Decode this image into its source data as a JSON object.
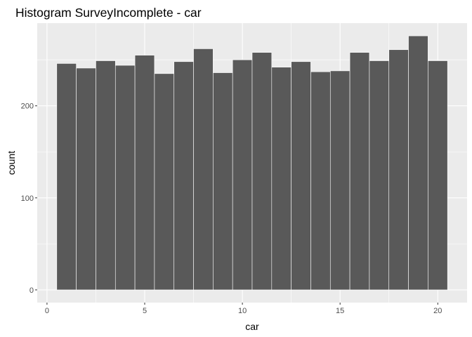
{
  "chart_data": {
    "type": "bar",
    "title": "Histogram SurveyIncomplete - car",
    "xlabel": "car",
    "ylabel": "count",
    "bins": [
      {
        "x": 1,
        "count": 246
      },
      {
        "x": 2,
        "count": 241
      },
      {
        "x": 3,
        "count": 249
      },
      {
        "x": 4,
        "count": 244
      },
      {
        "x": 5,
        "count": 255
      },
      {
        "x": 6,
        "count": 235
      },
      {
        "x": 7,
        "count": 248
      },
      {
        "x": 8,
        "count": 262
      },
      {
        "x": 9,
        "count": 236
      },
      {
        "x": 10,
        "count": 250
      },
      {
        "x": 11,
        "count": 258
      },
      {
        "x": 12,
        "count": 242
      },
      {
        "x": 13,
        "count": 248
      },
      {
        "x": 14,
        "count": 237
      },
      {
        "x": 15,
        "count": 238
      },
      {
        "x": 16,
        "count": 258
      },
      {
        "x": 17,
        "count": 249
      },
      {
        "x": 18,
        "count": 261
      },
      {
        "x": 19,
        "count": 276
      },
      {
        "x": 20,
        "count": 249
      }
    ],
    "bin_width": 1,
    "x_ticks": [
      "0",
      "5",
      "10",
      "15",
      "20"
    ],
    "y_ticks": [
      "0",
      "100",
      "200"
    ],
    "xlim": [
      -0.5,
      21.5
    ],
    "ylim": [
      -13.8,
      289.8
    ],
    "grid": true,
    "background": "#ebebeb",
    "bar_color": "#595959",
    "bar_outline": "#ffffff"
  }
}
